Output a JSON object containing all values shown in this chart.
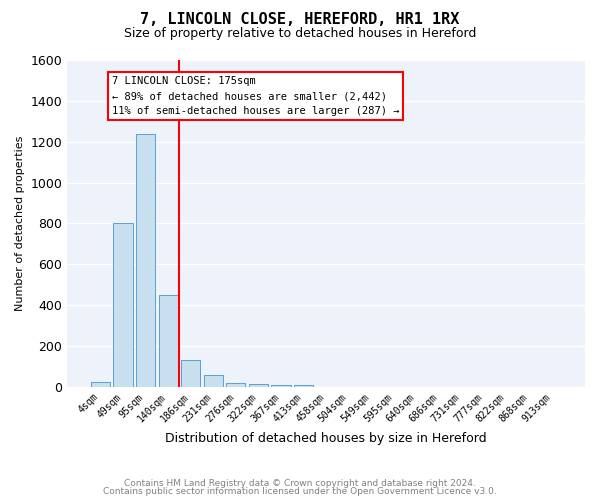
{
  "title": "7, LINCOLN CLOSE, HEREFORD, HR1 1RX",
  "subtitle": "Size of property relative to detached houses in Hereford",
  "xlabel": "Distribution of detached houses by size in Hereford",
  "ylabel": "Number of detached properties",
  "footer1": "Contains HM Land Registry data © Crown copyright and database right 2024.",
  "footer2": "Contains public sector information licensed under the Open Government Licence v3.0.",
  "bin_labels": [
    "4sqm",
    "49sqm",
    "95sqm",
    "140sqm",
    "186sqm",
    "231sqm",
    "276sqm",
    "322sqm",
    "367sqm",
    "413sqm",
    "458sqm",
    "504sqm",
    "549sqm",
    "595sqm",
    "640sqm",
    "686sqm",
    "731sqm",
    "777sqm",
    "822sqm",
    "868sqm",
    "913sqm"
  ],
  "bar_heights": [
    25,
    800,
    1240,
    450,
    130,
    58,
    20,
    12,
    10,
    10,
    0,
    0,
    0,
    0,
    0,
    0,
    0,
    0,
    0,
    0,
    0
  ],
  "property_line_x": 4,
  "property_line_label": "7 LINCOLN CLOSE: 175sqm",
  "annotation_line1": "← 89% of detached houses are smaller (2,442)",
  "annotation_line2": "11% of semi-detached houses are larger (287) →",
  "bar_color": "#c8dff0",
  "bar_edge_color": "#5a9fd4",
  "line_color": "red",
  "ylim": [
    0,
    1600
  ],
  "yticks": [
    0,
    200,
    400,
    600,
    800,
    1000,
    1200,
    1400,
    1600
  ],
  "background_color": "#eef2fb"
}
